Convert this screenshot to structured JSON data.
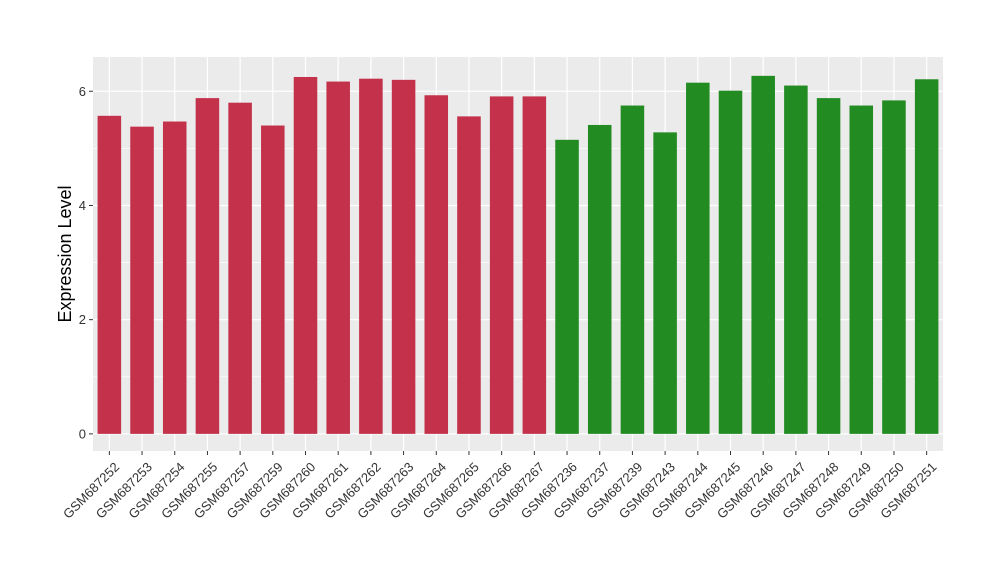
{
  "chart_data": {
    "type": "bar",
    "ylabel": "Expression Level",
    "xlabel": "",
    "ylim": [
      -0.3,
      6.6
    ],
    "yticks": [
      0,
      2,
      4,
      6
    ],
    "grid": true,
    "background": "#ebebeb",
    "gridline_color": "#ffffff",
    "group_colors": [
      "#c3314a",
      "#228b22"
    ],
    "categories": [
      "GSM687252",
      "GSM687253",
      "GSM687254",
      "GSM687255",
      "GSM687257",
      "GSM687259",
      "GSM687260",
      "GSM687261",
      "GSM687262",
      "GSM687263",
      "GSM687264",
      "GSM687265",
      "GSM687266",
      "GSM687267",
      "GSM687236",
      "GSM687237",
      "GSM687239",
      "GSM687243",
      "GSM687244",
      "GSM687245",
      "GSM687246",
      "GSM687247",
      "GSM687248",
      "GSM687249",
      "GSM687250",
      "GSM687251"
    ],
    "values": [
      5.57,
      5.38,
      5.47,
      5.88,
      5.8,
      5.4,
      6.25,
      6.17,
      6.22,
      6.2,
      5.93,
      5.56,
      5.91,
      5.91,
      5.15,
      5.41,
      5.75,
      5.28,
      6.15,
      6.01,
      6.27,
      6.1,
      5.88,
      5.75,
      5.84,
      6.21
    ],
    "groups": [
      0,
      0,
      0,
      0,
      0,
      0,
      0,
      0,
      0,
      0,
      0,
      0,
      0,
      0,
      1,
      1,
      1,
      1,
      1,
      1,
      1,
      1,
      1,
      1,
      1,
      1
    ]
  }
}
